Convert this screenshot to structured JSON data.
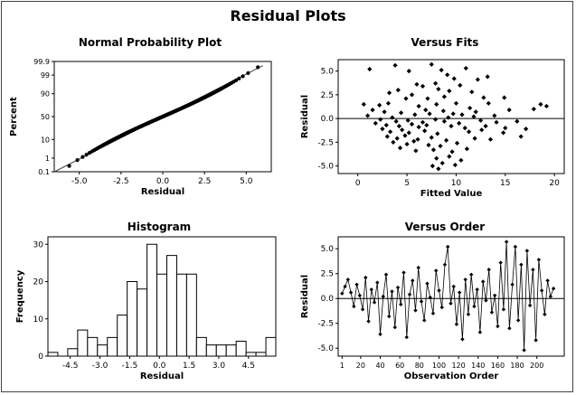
{
  "title": "Residual Plots",
  "chart_data": [
    {
      "type": "scatter",
      "title": "Normal Probability Plot",
      "xlabel": "Residual",
      "ylabel": "Percent",
      "xlim": [
        -6.5,
        6.5
      ],
      "x_ticks": [
        "-5.0",
        "-2.5",
        "0.0",
        "2.5",
        "5.0"
      ],
      "x_tick_values": [
        -5,
        -2.5,
        0,
        2.5,
        5
      ],
      "y_ticks": [
        "0.1",
        "1",
        "10",
        "50",
        "90",
        "99",
        "99.9"
      ],
      "y_tick_values": [
        0.1,
        1,
        10,
        50,
        90,
        99,
        99.9
      ],
      "y_scale": "normal probability",
      "fit_line": true,
      "n_points": 220
    },
    {
      "type": "scatter",
      "title": "Versus Fits",
      "xlabel": "Fitted Value",
      "ylabel": "Residual",
      "xlim": [
        -2,
        21
      ],
      "ylim": [
        -5.8,
        6.2
      ],
      "x_ticks": [
        "0",
        "5",
        "10",
        "15",
        "20"
      ],
      "x_tick_values": [
        0,
        5,
        10,
        15,
        20
      ],
      "y_ticks": [
        "-5.0",
        "-2.5",
        "0.0",
        "2.5",
        "5.0"
      ],
      "y_tick_values": [
        -5,
        -2.5,
        0,
        2.5,
        5
      ],
      "reference_line_y": 0,
      "points": [
        [
          1.2,
          5.2
        ],
        [
          3.8,
          5.6
        ],
        [
          7.5,
          5.7
        ],
        [
          8.5,
          5.1
        ],
        [
          11.0,
          5.3
        ],
        [
          5.2,
          5.0
        ],
        [
          13.2,
          4.4
        ],
        [
          9.8,
          4.2
        ],
        [
          9.1,
          4.6
        ],
        [
          12.2,
          4.1
        ],
        [
          6.0,
          3.6
        ],
        [
          4.1,
          3.0
        ],
        [
          6.6,
          3.4
        ],
        [
          10.4,
          3.5
        ],
        [
          8.2,
          3.1
        ],
        [
          7.9,
          3.7
        ],
        [
          5.5,
          2.5
        ],
        [
          3.2,
          2.7
        ],
        [
          11.6,
          2.8
        ],
        [
          9.3,
          2.9
        ],
        [
          8.8,
          2.3
        ],
        [
          14.9,
          2.2
        ],
        [
          4.9,
          2.1
        ],
        [
          12.8,
          2.2
        ],
        [
          7.1,
          2.1
        ],
        [
          0.6,
          1.5
        ],
        [
          2.2,
          1.4
        ],
        [
          3.1,
          1.6
        ],
        [
          10.0,
          1.6
        ],
        [
          8.0,
          1.5
        ],
        [
          6.2,
          1.3
        ],
        [
          11.4,
          1.1
        ],
        [
          13.3,
          1.6
        ],
        [
          18.6,
          1.5
        ],
        [
          19.2,
          1.3
        ],
        [
          17.9,
          1.0
        ],
        [
          1.5,
          0.9
        ],
        [
          2.7,
          0.7
        ],
        [
          4.4,
          0.6
        ],
        [
          6.9,
          0.9
        ],
        [
          8.7,
          0.8
        ],
        [
          9.7,
          0.5
        ],
        [
          10.6,
          0.4
        ],
        [
          12.0,
          0.7
        ],
        [
          13.9,
          0.3
        ],
        [
          15.4,
          0.9
        ],
        [
          1.0,
          0.3
        ],
        [
          3.5,
          0.1
        ],
        [
          5.8,
          0.4
        ],
        [
          7.3,
          0.5
        ],
        [
          11.8,
          0.2
        ],
        [
          9.2,
          0.1
        ],
        [
          2.3,
          -0.1
        ],
        [
          3.9,
          -0.3
        ],
        [
          5.1,
          -0.2
        ],
        [
          6.6,
          -0.4
        ],
        [
          7.9,
          -0.1
        ],
        [
          8.8,
          -0.3
        ],
        [
          10.3,
          -0.5
        ],
        [
          12.5,
          -0.2
        ],
        [
          14.1,
          -0.4
        ],
        [
          16.2,
          -0.3
        ],
        [
          1.8,
          -0.5
        ],
        [
          2.9,
          -0.7
        ],
        [
          4.2,
          -0.8
        ],
        [
          5.5,
          -0.6
        ],
        [
          6.2,
          -0.9
        ],
        [
          7.0,
          -0.7
        ],
        [
          9.5,
          -0.8
        ],
        [
          10.9,
          -1.0
        ],
        [
          13.0,
          -0.8
        ],
        [
          15.0,
          -1.0
        ],
        [
          17.1,
          -1.1
        ],
        [
          2.5,
          -1.1
        ],
        [
          3.3,
          -1.4
        ],
        [
          4.5,
          -1.2
        ],
        [
          5.2,
          -1.5
        ],
        [
          6.8,
          -1.3
        ],
        [
          8.1,
          -1.6
        ],
        [
          11.3,
          -1.4
        ],
        [
          12.6,
          -1.2
        ],
        [
          14.8,
          -1.5
        ],
        [
          16.6,
          -1.9
        ],
        [
          3.0,
          -1.9
        ],
        [
          4.0,
          -2.1
        ],
        [
          4.8,
          -1.8
        ],
        [
          6.1,
          -2.2
        ],
        [
          7.5,
          -2.0
        ],
        [
          9.0,
          -2.3
        ],
        [
          11.9,
          -2.1
        ],
        [
          13.5,
          -2.2
        ],
        [
          3.6,
          -2.5
        ],
        [
          5.0,
          -2.7
        ],
        [
          5.7,
          -2.4
        ],
        [
          7.2,
          -2.8
        ],
        [
          8.4,
          -2.9
        ],
        [
          10.1,
          -2.6
        ],
        [
          4.3,
          -3.1
        ],
        [
          5.9,
          -3.4
        ],
        [
          7.7,
          -3.3
        ],
        [
          9.6,
          -3.5
        ],
        [
          11.1,
          -3.2
        ],
        [
          8.0,
          -4.2
        ],
        [
          9.3,
          -4.0
        ],
        [
          10.5,
          -4.4
        ],
        [
          8.6,
          -4.7
        ],
        [
          7.6,
          -5.0
        ],
        [
          9.9,
          -4.9
        ],
        [
          8.2,
          -5.3
        ]
      ]
    },
    {
      "type": "bar",
      "title": "Histogram",
      "xlabel": "Residual",
      "ylabel": "Frequency",
      "ylim": [
        0,
        32
      ],
      "x_ticks": [
        "-4.5",
        "-3.0",
        "-1.5",
        "0.0",
        "1.5",
        "3.0",
        "4.5"
      ],
      "x_tick_values": [
        -4.5,
        -3.0,
        -1.5,
        0.0,
        1.5,
        3.0,
        4.5
      ],
      "y_ticks": [
        "0",
        "10",
        "20",
        "30"
      ],
      "y_tick_values": [
        0,
        10,
        20,
        30
      ],
      "bin_edges": [
        -5.625,
        -5.125,
        -4.625,
        -4.125,
        -3.625,
        -3.125,
        -2.625,
        -2.125,
        -1.625,
        -1.125,
        -0.625,
        -0.125,
        0.375,
        0.875,
        1.375,
        1.875,
        2.375,
        2.875,
        3.375,
        3.875,
        4.375,
        4.875,
        5.375,
        5.875
      ],
      "values": [
        1,
        0,
        2,
        7,
        5,
        3,
        5,
        11,
        20,
        18,
        30,
        22,
        27,
        22,
        22,
        5,
        3,
        3,
        3,
        4,
        1,
        1,
        5
      ]
    },
    {
      "type": "line",
      "title": "Versus Order",
      "xlabel": "Observation Order",
      "ylabel": "Residual",
      "xlim": [
        -3,
        228
      ],
      "ylim": [
        -5.8,
        6.2
      ],
      "x_ticks": [
        "1",
        "20",
        "40",
        "60",
        "80",
        "100",
        "120",
        "140",
        "160",
        "180",
        "200"
      ],
      "x_tick_values": [
        1,
        20,
        40,
        60,
        80,
        100,
        120,
        140,
        160,
        180,
        200
      ],
      "y_ticks": [
        "-5.0",
        "-2.5",
        "0.0",
        "2.5",
        "5.0"
      ],
      "y_tick_values": [
        -5,
        -2.5,
        0,
        2.5,
        5
      ],
      "reference_line_y": 0,
      "markers": true,
      "x": [
        1,
        4,
        7,
        10,
        13,
        16,
        19,
        22,
        25,
        28,
        31,
        34,
        37,
        40,
        43,
        46,
        49,
        52,
        55,
        58,
        61,
        64,
        67,
        70,
        73,
        76,
        79,
        82,
        85,
        88,
        91,
        94,
        97,
        100,
        103,
        106,
        109,
        112,
        115,
        118,
        121,
        124,
        127,
        130,
        133,
        136,
        139,
        142,
        145,
        148,
        151,
        154,
        157,
        160,
        163,
        166,
        169,
        172,
        175,
        178,
        181,
        184,
        187,
        190,
        193,
        196,
        199,
        202,
        205,
        208,
        211,
        214,
        217
      ],
      "y": [
        0.5,
        1.2,
        1.9,
        0.6,
        -0.8,
        1.4,
        0.3,
        -1.1,
        2.1,
        -2.3,
        0.9,
        -0.4,
        1.6,
        -3.6,
        0.2,
        2.4,
        -1.8,
        0.7,
        -2.9,
        1.1,
        -0.6,
        2.6,
        -3.9,
        0.4,
        1.8,
        -1.2,
        3.1,
        -0.3,
        -2.2,
        1.5,
        0.1,
        -1.5,
        2.8,
        0.8,
        -0.9,
        3.4,
        5.2,
        -0.5,
        1.2,
        -2.6,
        0.6,
        -4.1,
        1.9,
        -1.6,
        2.4,
        -0.8,
        0.9,
        -3.4,
        1.7,
        -0.2,
        2.9,
        -1.4,
        0.3,
        -2.8,
        3.6,
        -1.1,
        5.7,
        -3.0,
        1.4,
        5.2,
        -2.2,
        3.4,
        -5.2,
        4.8,
        -0.7,
        2.9,
        -4.2,
        3.9,
        0.8,
        -1.6,
        1.8,
        0.2,
        1.0
      ]
    }
  ]
}
